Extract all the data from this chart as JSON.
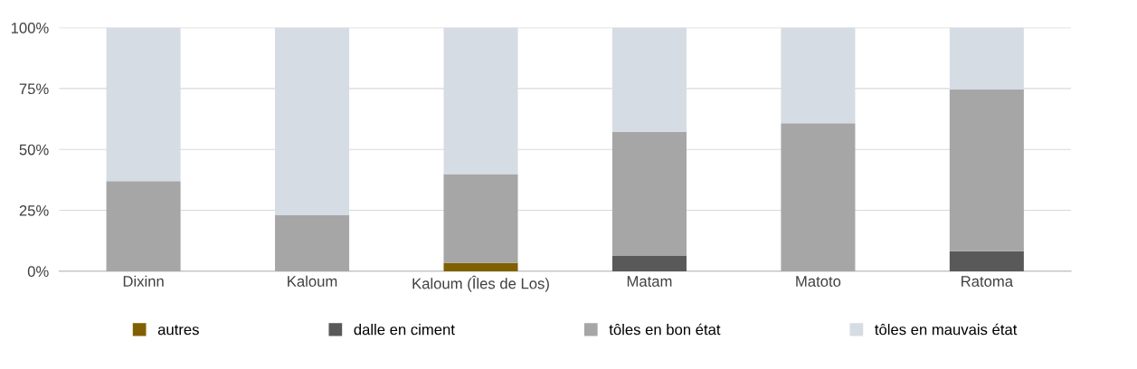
{
  "chart_data": {
    "type": "bar",
    "stacked": true,
    "categories": [
      "Dixinn",
      "Kaloum",
      "Kaloum (Îles de Los)",
      "Matam",
      "Matoto",
      "Ratoma"
    ],
    "series": [
      {
        "name": "autres",
        "color": "#806000",
        "values": [
          0,
          0,
          3.4,
          0,
          0,
          0
        ]
      },
      {
        "name": "dalle en ciment",
        "color": "#595959",
        "values": [
          0,
          0,
          0,
          6.3,
          0,
          8.2
        ]
      },
      {
        "name": "tôles en bon état",
        "color": "#a6a6a6",
        "values": [
          37,
          23,
          36.5,
          50.8,
          60.8,
          66.4
        ]
      },
      {
        "name": "tôles en mauvais état",
        "color": "#d6dce4",
        "values": [
          63,
          77,
          60.1,
          42.9,
          39.2,
          25.4
        ]
      }
    ],
    "ylim": [
      0,
      100
    ],
    "yticks": [
      {
        "value": 0,
        "label": "0%"
      },
      {
        "value": 25,
        "label": "25%"
      },
      {
        "value": 50,
        "label": "50%"
      },
      {
        "value": 75,
        "label": "75%"
      },
      {
        "value": 100,
        "label": "100%"
      }
    ],
    "grid": "y",
    "legend": "bottom"
  }
}
